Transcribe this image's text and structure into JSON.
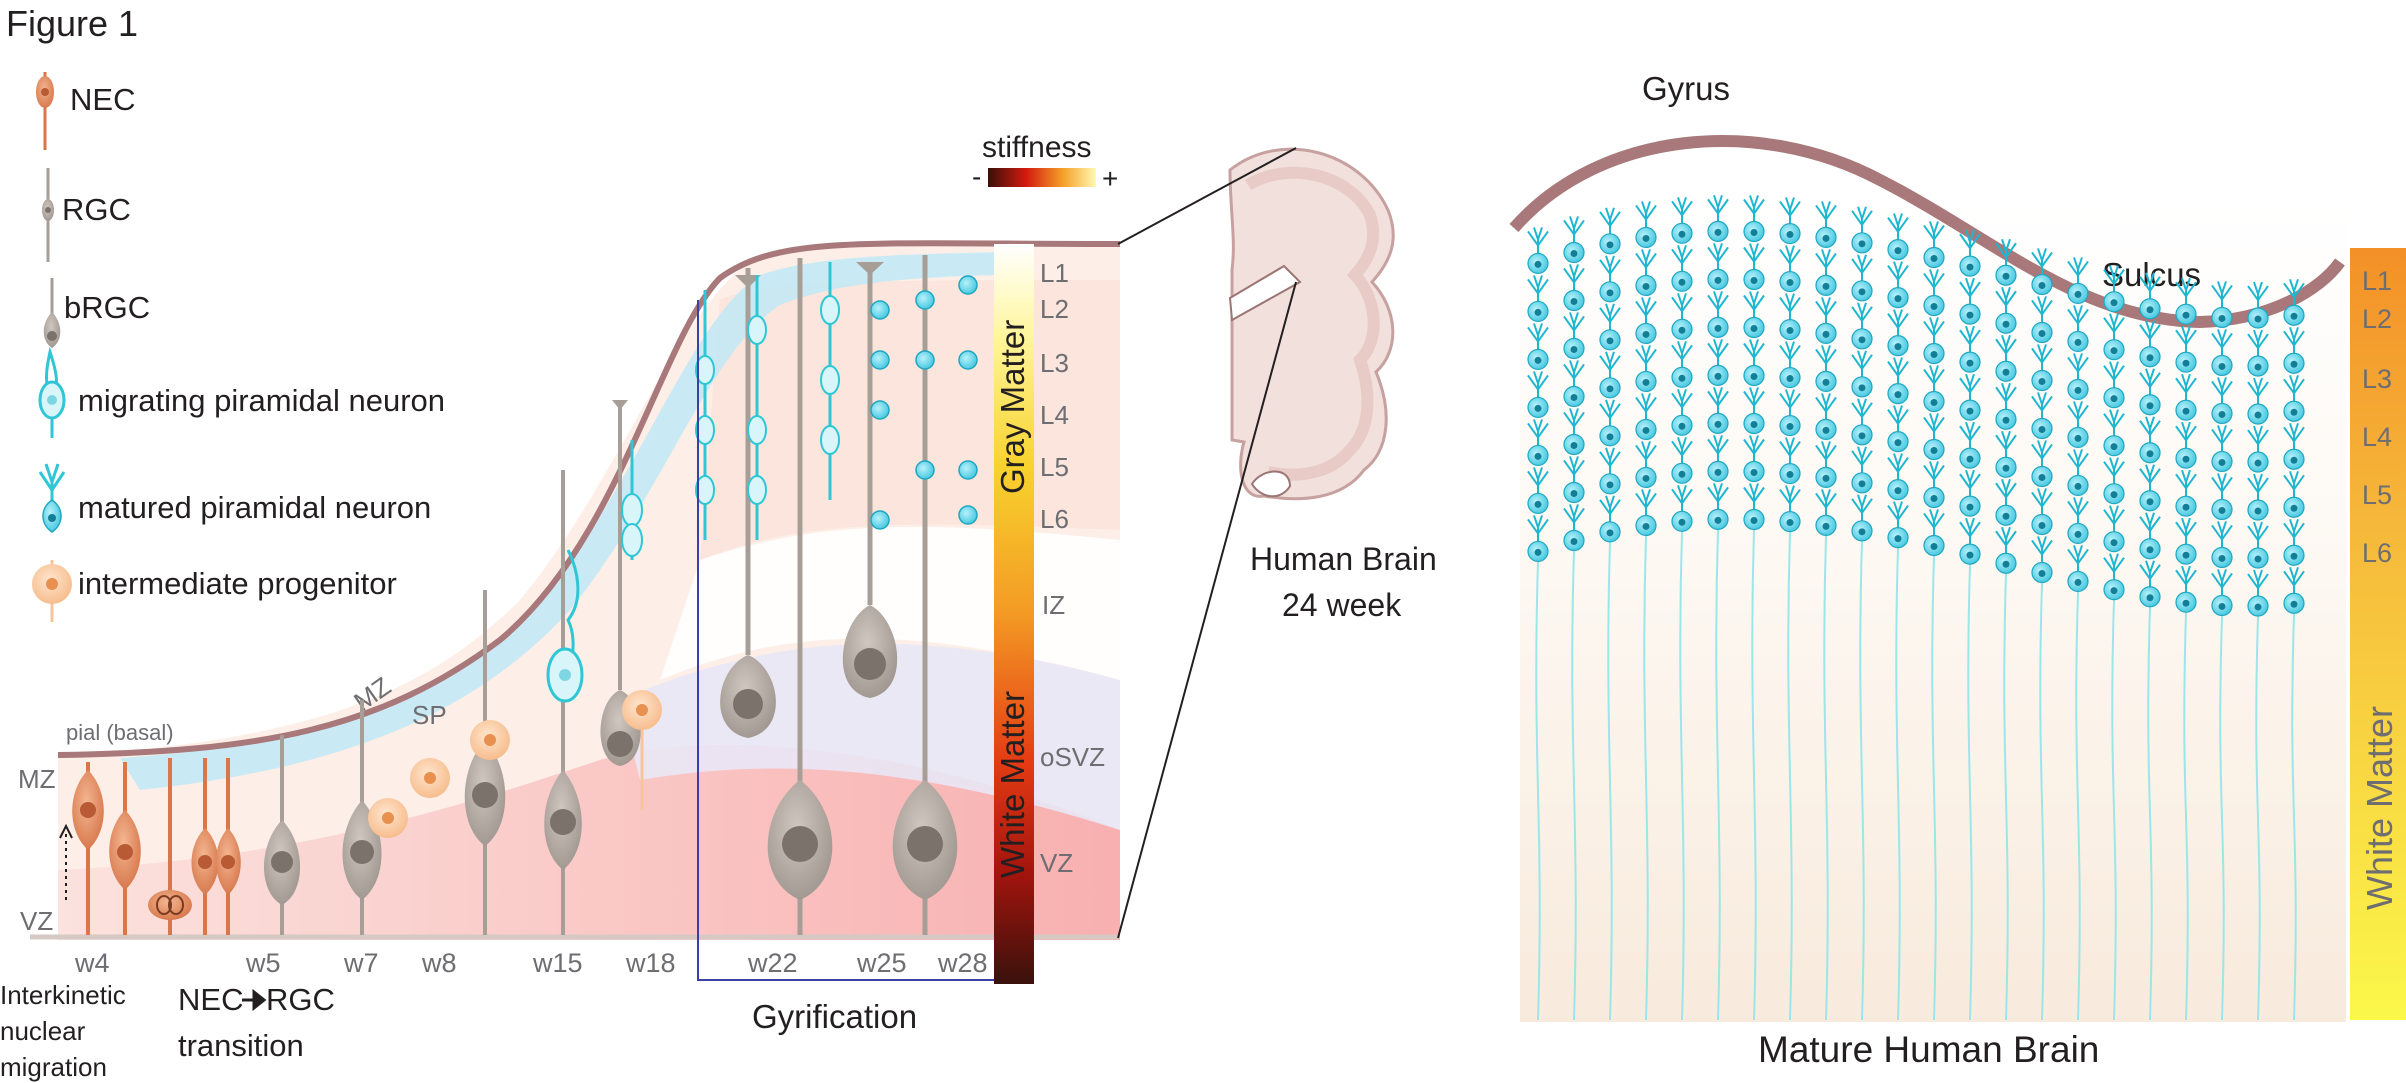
{
  "figure_title": "Figure 1",
  "legend": [
    {
      "label": "NEC",
      "icon": "nec-cell-icon"
    },
    {
      "label": "RGC",
      "icon": "rgc-cell-icon"
    },
    {
      "label": "bRGC",
      "icon": "brgc-cell-icon"
    },
    {
      "label": "migrating piramidal neuron",
      "icon": "migrating-neuron-icon"
    },
    {
      "label": "matured piramidal neuron",
      "icon": "mature-neuron-icon"
    },
    {
      "label": "intermediate progenitor",
      "icon": "progenitor-cell-icon"
    }
  ],
  "stiffness": {
    "title": "stiffness",
    "minus": "-",
    "plus": "+"
  },
  "development": {
    "pial_label": "pial (basal)",
    "left_zone_labels": [
      "MZ",
      "VZ"
    ],
    "inner_labels": [
      "MZ",
      "SP"
    ],
    "weeks": [
      "w4",
      "w5",
      "w7",
      "w8",
      "w15",
      "w18",
      "w22",
      "w25",
      "w28"
    ],
    "layers": [
      "L1",
      "L2",
      "L3",
      "L4",
      "L5",
      "L6"
    ],
    "zones": [
      "IZ",
      "oSVZ",
      "VZ"
    ],
    "gray_matter_label": "Gray Matter",
    "white_matter_label": "White Matter",
    "interkinetic_label": [
      "Interkinetic",
      "nuclear",
      "migration"
    ],
    "transition_label": [
      "NEC",
      "RGC",
      "transition"
    ],
    "gyrification_label": "Gyrification"
  },
  "human_brain": {
    "label_line1": "Human Brain",
    "label_line2": "24 week"
  },
  "mature": {
    "gyrus_label": "Gyrus",
    "sulcus_label": "Sulcus",
    "layers": [
      "L1",
      "L2",
      "L3",
      "L4",
      "L5",
      "L6"
    ],
    "white_matter_label": "White Matter",
    "title": "Mature Human Brain"
  },
  "colors": {
    "cyan": "#2fc6d6",
    "mature_cyan": "#1fb7d0",
    "nec_orange": "#d9764a",
    "rgc_gray": "#a79e97",
    "progenitor": "#f6c49d",
    "pial": "#a8787a",
    "mz_band": "#bfe9f6"
  }
}
